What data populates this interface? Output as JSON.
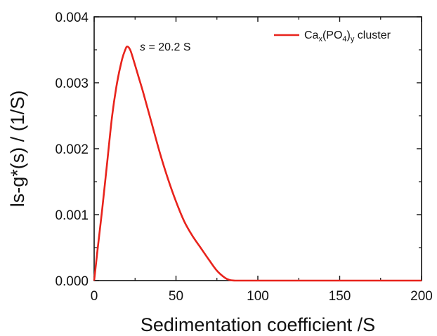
{
  "chart_data": {
    "type": "line",
    "xlabel": "Sedimentation coefficient /S",
    "ylabel": "ls-g*(s) / (1/S)",
    "xlim": [
      0,
      200
    ],
    "ylim": [
      0,
      0.004
    ],
    "xticks": [
      0,
      50,
      100,
      150,
      200
    ],
    "yticks": [
      0.0,
      0.001,
      0.002,
      0.003,
      0.004
    ],
    "xtick_labels": [
      "0",
      "50",
      "100",
      "150",
      "200"
    ],
    "ytick_labels": [
      "0.000",
      "0.001",
      "0.002",
      "0.003",
      "0.004"
    ],
    "grid": false,
    "legend_position": "top-right",
    "series": [
      {
        "name": "Cax(PO4)y cluster",
        "color": "#e8231c",
        "x": [
          0,
          2,
          5,
          8,
          11,
          14,
          17,
          19,
          20.2,
          22,
          24,
          27,
          30,
          35,
          40,
          45,
          50,
          55,
          60,
          65,
          70,
          75,
          80,
          83,
          86,
          90,
          100,
          120,
          150,
          200
        ],
        "y": [
          0.0,
          0.00045,
          0.0011,
          0.0018,
          0.0025,
          0.003,
          0.00335,
          0.0035,
          0.00355,
          0.0035,
          0.00335,
          0.0031,
          0.00285,
          0.0024,
          0.00195,
          0.00155,
          0.0012,
          0.0009,
          0.00068,
          0.0005,
          0.00032,
          0.00015,
          4e-05,
          8e-06,
          0.0,
          0.0,
          0.0,
          0.0,
          0.0,
          0.0
        ]
      }
    ],
    "legend": {
      "base": "Ca",
      "sub1": "x",
      "mid": "(PO",
      "sub2": "4",
      "close": ")",
      "sub3": "y",
      "tail": " cluster"
    },
    "annotation": {
      "var": "s",
      "rest": " = 20.2 S",
      "x": 20.2,
      "y": 0.00355
    }
  }
}
